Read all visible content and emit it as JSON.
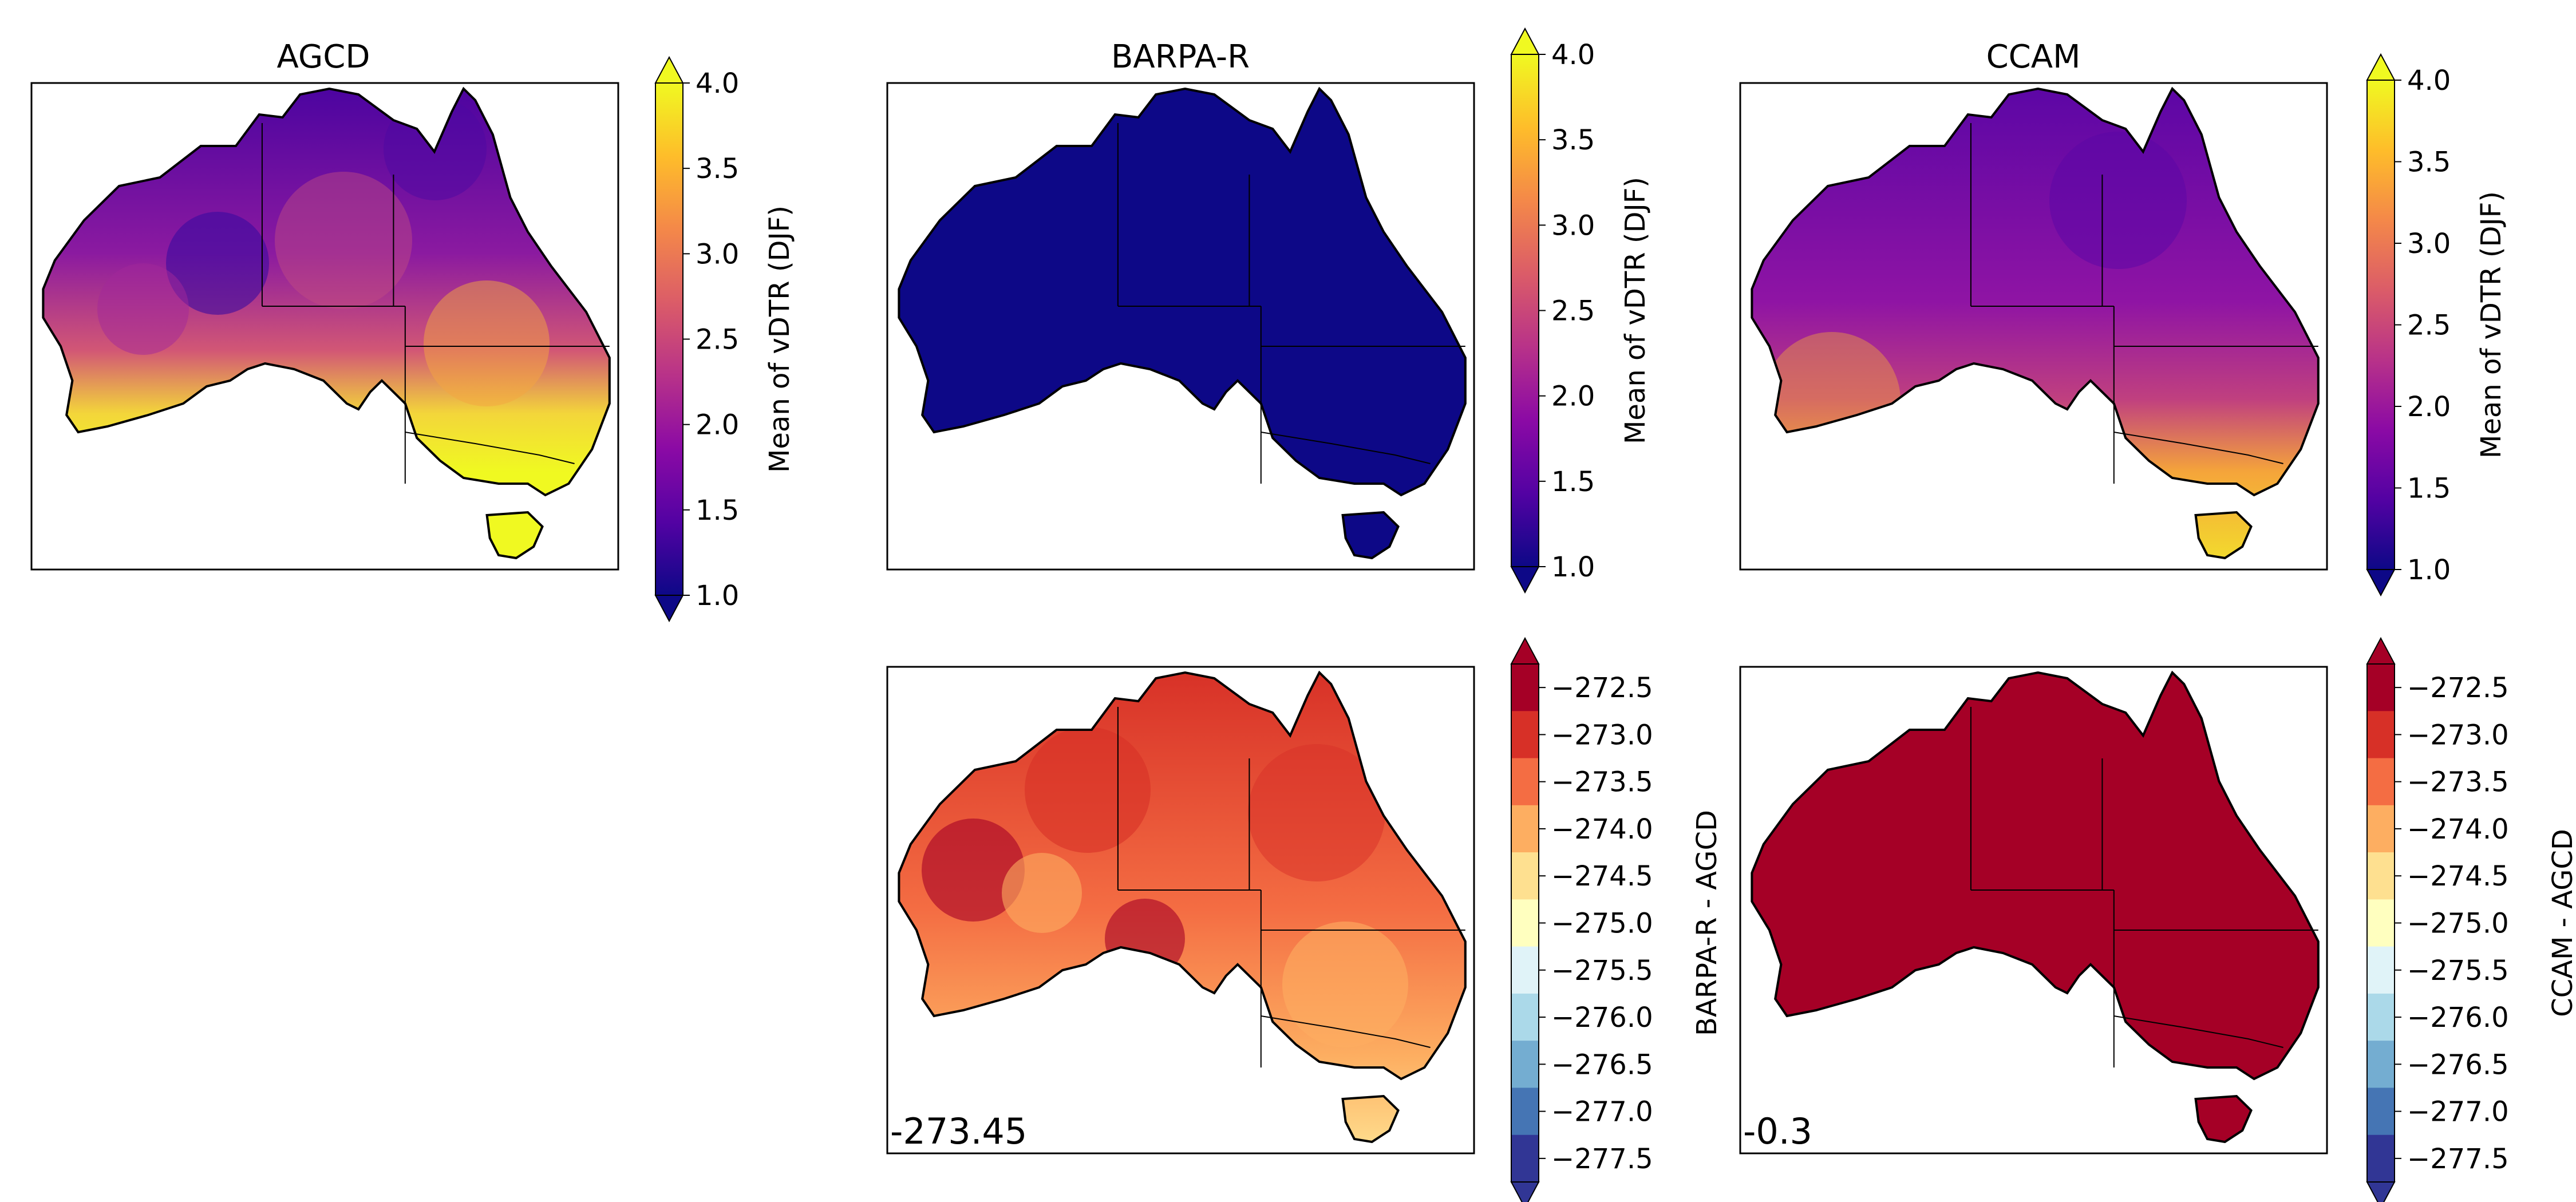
{
  "panels": {
    "agcd": {
      "title": "AGCD"
    },
    "barpa": {
      "title": "BARPA-R"
    },
    "ccam": {
      "title": "CCAM"
    },
    "barpa_diff": {
      "annotation": "-273.45"
    },
    "ccam_diff": {
      "annotation": "-0.3"
    }
  },
  "colorbars": {
    "mean": {
      "label": "Mean of vDTR (DJF)",
      "ticks": [
        "1.0",
        "1.5",
        "2.0",
        "2.5",
        "3.0",
        "3.5",
        "4.0"
      ],
      "range": [
        1.0,
        4.0
      ],
      "extend": "both",
      "colormap": "plasma",
      "stops": [
        "#0d0887",
        "#5302a3",
        "#8b0aa5",
        "#b83289",
        "#db5c68",
        "#f48849",
        "#febd2a",
        "#f0f921"
      ]
    },
    "barpa_diff": {
      "label": "BARPA-R - AGCD",
      "ticks": [
        "−272.5",
        "−273.0",
        "−273.5",
        "−274.0",
        "−274.5",
        "−275.0",
        "−275.5",
        "−276.0",
        "−276.5",
        "−277.0",
        "−277.5"
      ],
      "range": [
        -277.75,
        -272.25
      ],
      "extend": "both",
      "colormap": "RdYlBu_r",
      "levels": [
        "#a50026",
        "#d73027",
        "#f46d43",
        "#fdae61",
        "#fee090",
        "#ffffbf",
        "#e0f3f8",
        "#abd9e9",
        "#74add1",
        "#4575b4",
        "#313695"
      ]
    },
    "ccam_diff": {
      "label": "CCAM - AGCD",
      "ticks": [
        "−272.5",
        "−273.0",
        "−273.5",
        "−274.0",
        "−274.5",
        "−275.0",
        "−275.5",
        "−276.0",
        "−276.5",
        "−277.0",
        "−277.5"
      ],
      "range": [
        -277.75,
        -272.25
      ],
      "extend": "both",
      "colormap": "RdYlBu_r"
    }
  }
}
